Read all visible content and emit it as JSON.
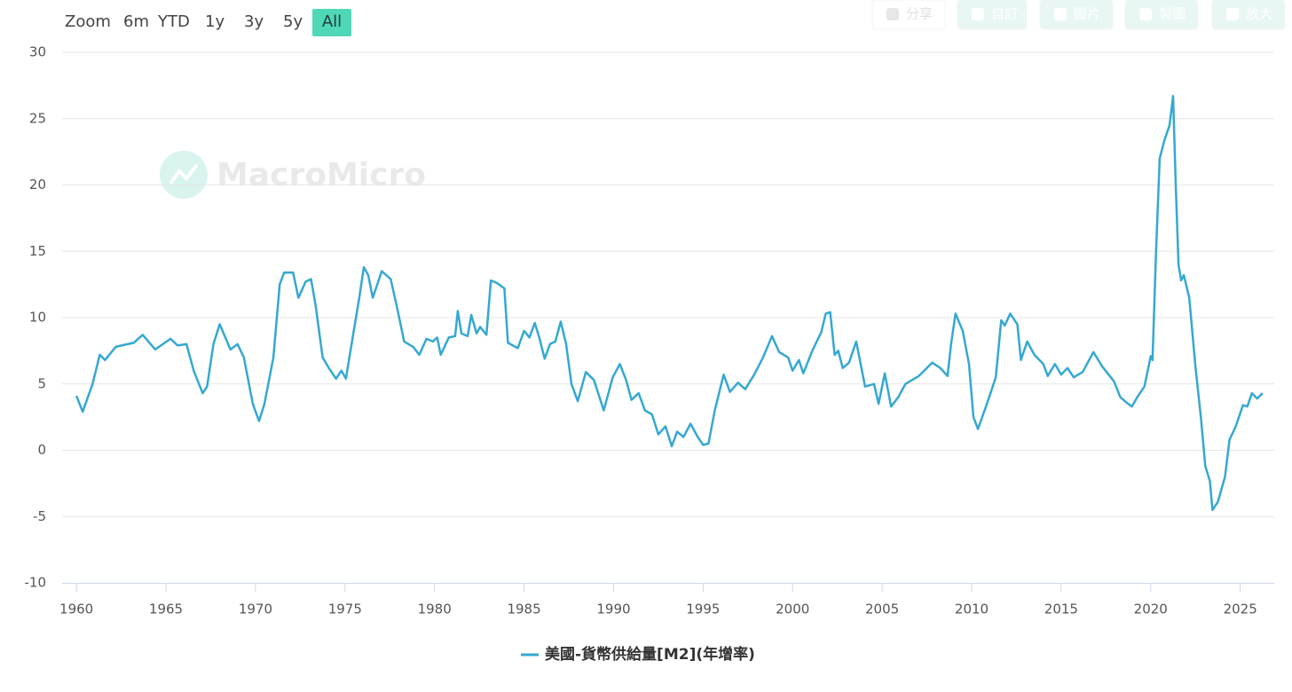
{
  "toolbar": {
    "zoom_label": "Zoom",
    "ranges": [
      "6m",
      "YTD",
      "1y",
      "3y",
      "5y",
      "All"
    ],
    "active_range": "All",
    "actions": [
      "分享",
      "自訂",
      "圖片",
      "製圖",
      "放大"
    ]
  },
  "watermark": "MacroMicro",
  "chart_data": {
    "type": "line",
    "x": [
      1960,
      1960.35,
      1960.9,
      1961.3,
      1961.6,
      1962.2,
      1963.2,
      1963.7,
      1964.4,
      1965.25,
      1965.65,
      1966.15,
      1966.55,
      1967.05,
      1967.3,
      1967.65,
      1968.0,
      1968.6,
      1969.0,
      1969.35,
      1969.85,
      1970.2,
      1970.5,
      1971.0,
      1971.35,
      1971.6,
      1972.1,
      1972.4,
      1972.8,
      1973.1,
      1973.35,
      1973.75,
      1974.1,
      1974.5,
      1974.8,
      1975.05,
      1975.55,
      1975.8,
      1976.05,
      1976.3,
      1976.55,
      1977.05,
      1977.55,
      1977.95,
      1978.3,
      1978.8,
      1979.15,
      1979.55,
      1979.9,
      1980.15,
      1980.35,
      1980.8,
      1981.15,
      1981.3,
      1981.5,
      1981.85,
      1982.05,
      1982.35,
      1982.55,
      1982.9,
      1983.15,
      1983.5,
      1983.9,
      1984.1,
      1984.65,
      1985.0,
      1985.3,
      1985.6,
      1985.85,
      1986.15,
      1986.45,
      1986.75,
      1987.05,
      1987.35,
      1987.65,
      1988.0,
      1988.45,
      1988.9,
      1989.45,
      1989.95,
      1990.35,
      1990.7,
      1991.0,
      1991.4,
      1991.75,
      1992.15,
      1992.5,
      1992.9,
      1993.25,
      1993.55,
      1993.9,
      1994.3,
      1994.7,
      1995.0,
      1995.3,
      1995.65,
      1996.15,
      1996.5,
      1996.95,
      1997.35,
      1997.85,
      1998.35,
      1998.85,
      1999.25,
      1999.75,
      2000.0,
      2000.35,
      2000.6,
      2001.1,
      2001.6,
      2001.85,
      2002.1,
      2002.35,
      2002.55,
      2002.8,
      2003.15,
      2003.55,
      2004.05,
      2004.55,
      2004.8,
      2005.15,
      2005.5,
      2005.9,
      2006.3,
      2007.05,
      2007.8,
      2008.25,
      2008.65,
      2008.85,
      2009.1,
      2009.5,
      2009.85,
      2010.1,
      2010.35,
      2010.85,
      2011.35,
      2011.65,
      2011.85,
      2012.15,
      2012.55,
      2012.75,
      2013.1,
      2013.5,
      2014.0,
      2014.25,
      2014.65,
      2015.0,
      2015.35,
      2015.7,
      2016.2,
      2016.8,
      2017.3,
      2017.95,
      2018.3,
      2018.65,
      2018.95,
      2019.25,
      2019.65,
      2020.0,
      2020.1,
      2020.3,
      2020.5,
      2020.75,
      2021.05,
      2021.25,
      2021.4,
      2021.55,
      2021.7,
      2021.85,
      2022.15,
      2022.5,
      2022.8,
      2023.05,
      2023.3,
      2023.45,
      2023.75,
      2024.15,
      2024.4,
      2024.75,
      2025.15,
      2025.4,
      2025.65,
      2025.95,
      2026.25
    ],
    "series": [
      {
        "name": "美國-貨幣供給量[M2](年增率)",
        "color": "#35a8d1",
        "values": [
          4.1,
          2.9,
          5.0,
          7.2,
          6.8,
          7.8,
          8.1,
          8.7,
          7.6,
          8.4,
          7.9,
          8.0,
          6.0,
          4.3,
          4.8,
          8.0,
          9.5,
          7.6,
          8.0,
          7.0,
          3.5,
          2.2,
          3.5,
          7.0,
          12.5,
          13.4,
          13.4,
          11.5,
          12.7,
          12.9,
          11.0,
          7.0,
          6.2,
          5.4,
          6.0,
          5.4,
          9.5,
          11.5,
          13.8,
          13.2,
          11.5,
          13.5,
          12.9,
          10.5,
          8.2,
          7.8,
          7.2,
          8.4,
          8.2,
          8.5,
          7.2,
          8.5,
          8.6,
          10.5,
          8.8,
          8.6,
          10.2,
          8.8,
          9.3,
          8.7,
          12.8,
          12.6,
          12.2,
          8.1,
          7.7,
          9.0,
          8.5,
          9.6,
          8.5,
          6.9,
          8.0,
          8.2,
          9.7,
          8.0,
          5.0,
          3.7,
          5.9,
          5.3,
          3.0,
          5.5,
          6.5,
          5.3,
          3.8,
          4.3,
          3.0,
          2.7,
          1.2,
          1.8,
          0.3,
          1.4,
          1.0,
          2.0,
          1.0,
          0.4,
          0.5,
          3.0,
          5.7,
          4.4,
          5.1,
          4.6,
          5.7,
          7.0,
          8.6,
          7.4,
          7.0,
          6.0,
          6.8,
          5.8,
          7.5,
          8.9,
          10.3,
          10.4,
          7.2,
          7.5,
          6.2,
          6.6,
          8.2,
          4.8,
          5.0,
          3.5,
          5.8,
          3.3,
          4.0,
          5.0,
          5.6,
          6.6,
          6.2,
          5.6,
          8.0,
          10.3,
          9.0,
          6.5,
          2.5,
          1.6,
          3.5,
          5.5,
          9.8,
          9.4,
          10.3,
          9.5,
          6.8,
          8.2,
          7.2,
          6.5,
          5.6,
          6.5,
          5.7,
          6.2,
          5.5,
          5.9,
          7.4,
          6.3,
          5.2,
          4.0,
          3.6,
          3.3,
          4.0,
          4.8,
          7.1,
          6.8,
          15.0,
          22.0,
          23.3,
          24.5,
          26.7,
          20.0,
          14.0,
          12.8,
          13.2,
          11.5,
          6.3,
          2.5,
          -1.2,
          -2.3,
          -4.5,
          -3.9,
          -2.0,
          0.8,
          1.8,
          3.4,
          3.3,
          4.3,
          3.9,
          4.3
        ]
      }
    ],
    "xlim": [
      1959.2,
      2026.9
    ],
    "xticks": [
      1960,
      1965,
      1970,
      1975,
      1980,
      1985,
      1990,
      1995,
      2000,
      2005,
      2010,
      2015,
      2020,
      2025
    ],
    "ylim": [
      -10,
      30
    ],
    "yticks": [
      -10,
      -5,
      0,
      5,
      10,
      15,
      20,
      25,
      30
    ],
    "grid": true
  }
}
